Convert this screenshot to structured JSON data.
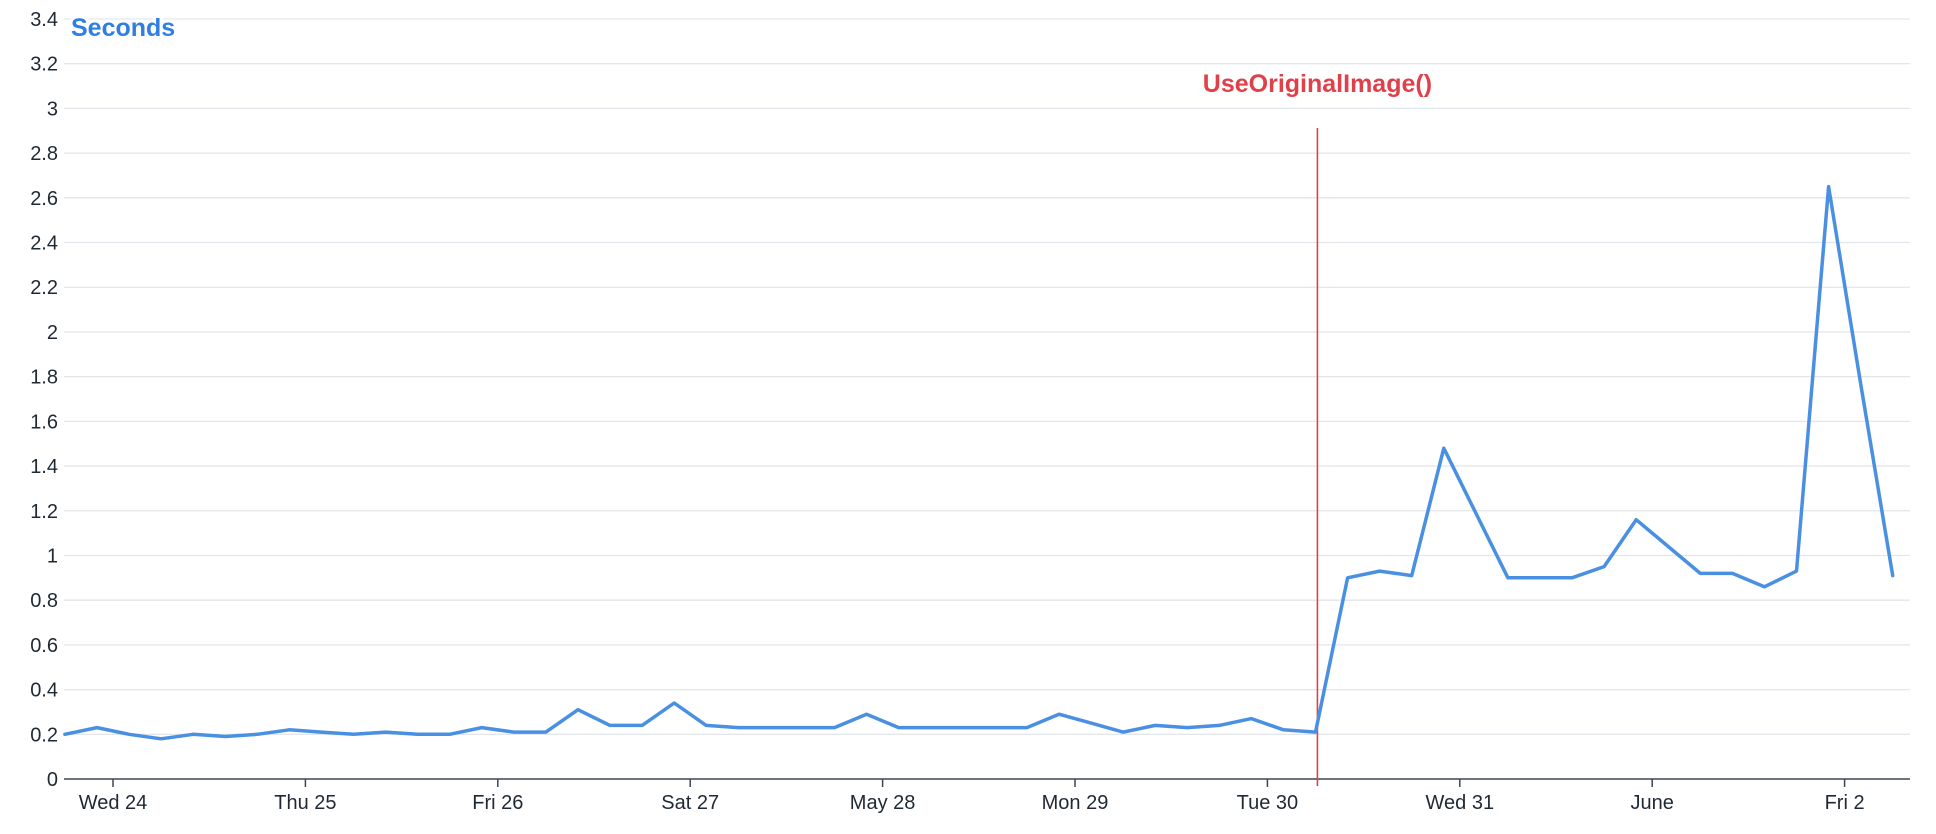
{
  "chart_data": {
    "type": "line",
    "title": "",
    "xlabel": "",
    "ylabel": "",
    "series_label": "Seconds",
    "ylim": [
      0,
      3.4
    ],
    "y_ticks": [
      0,
      0.2,
      0.4,
      0.6,
      0.8,
      1,
      1.2,
      1.4,
      1.6,
      1.8,
      2,
      2.2,
      2.4,
      2.6,
      2.8,
      3,
      3.2,
      3.4
    ],
    "x_ticks": [
      "Wed 24",
      "Thu 25",
      "Fri 26",
      "Sat 27",
      "May 28",
      "Mon 29",
      "Tue 30",
      "Wed 31",
      "June",
      "Fri 2"
    ],
    "grid": true,
    "colors": {
      "series": "#4a90e2",
      "annotation": "#e0404a",
      "grid": "#e3e6ea",
      "axis": "#3c4654"
    },
    "annotation": {
      "label": "UseOriginalImage()",
      "x_tick_offset": 6.26
    },
    "series": [
      {
        "x_tick_offset": [
          -0.25,
          -0.083,
          0.083,
          0.25,
          0.417,
          0.583,
          0.75,
          0.917,
          1.083,
          1.25,
          1.417,
          1.583,
          1.75,
          1.917,
          2.083,
          2.25,
          2.417,
          2.583,
          2.75,
          2.917,
          3.083,
          3.25,
          3.417,
          3.583,
          3.75,
          3.917,
          4.083,
          4.25,
          4.417,
          4.583,
          4.75,
          4.917,
          5.083,
          5.25,
          5.417,
          5.583,
          5.75,
          5.917,
          6.083,
          6.25,
          6.417,
          6.583,
          6.75,
          6.917,
          7.083,
          7.25,
          7.417,
          7.583,
          7.75,
          7.917,
          8.083,
          8.25,
          8.417,
          8.583,
          8.75,
          8.917,
          9.083,
          9.25
        ],
        "values": [
          0.2,
          0.23,
          0.2,
          0.18,
          0.2,
          0.19,
          0.2,
          0.22,
          0.21,
          0.2,
          0.21,
          0.2,
          0.2,
          0.23,
          0.21,
          0.21,
          0.31,
          0.24,
          0.24,
          0.34,
          0.24,
          0.23,
          0.23,
          0.23,
          0.23,
          0.29,
          0.23,
          0.23,
          0.23,
          0.23,
          0.23,
          0.29,
          0.25,
          0.21,
          0.24,
          0.23,
          0.24,
          0.27,
          0.22,
          0.21,
          0.9,
          0.93,
          0.91,
          1.48,
          1.19,
          0.9,
          0.9,
          0.9,
          0.95,
          1.16,
          1.04,
          0.92,
          0.92,
          0.86,
          0.93,
          2.65,
          1.77,
          0.91
        ]
      }
    ]
  }
}
